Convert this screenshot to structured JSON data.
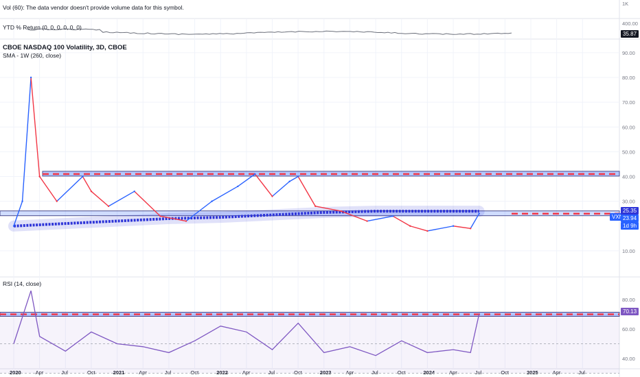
{
  "panes": {
    "volume": {
      "label": "Vol (60): The data vendor doesn't provide volume data for this symbol.",
      "scale": [
        "1K"
      ]
    },
    "ytd": {
      "label": "YTD % Return (0, 0, 0, 0, 0, 0)",
      "scale": [
        "400.00"
      ],
      "value_tag": "35.87"
    },
    "main": {
      "title": "CBOE NASDAQ 100 Volatility, 3D, CBOE",
      "sma_label": "SMA - 1W (260, close)",
      "scale": [
        "90.00",
        "80.00",
        "70.00",
        "60.00",
        "50.00",
        "40.00",
        "30.00",
        "10.00"
      ],
      "symbol_tag": "VXN",
      "tags": [
        "25.35",
        "23.94",
        "1d 9h"
      ]
    },
    "rsi": {
      "label": "RSI (14, close)",
      "scale": [
        "80.00",
        "60.00",
        "40.00"
      ],
      "value_tag": "70.13"
    }
  },
  "x_axis": {
    "labels": [
      "2020",
      "Apr",
      "Jul",
      "Oct",
      "2021",
      "Apr",
      "Jul",
      "Oct",
      "2022",
      "Apr",
      "Jul",
      "Oct",
      "2023",
      "Apr",
      "Jul",
      "Oct",
      "2024",
      "Apr",
      "Jul",
      "Oct",
      "2025",
      "Apr",
      "Jul"
    ],
    "bold": [
      "2020",
      "2021",
      "2022",
      "2023",
      "2024",
      "2025"
    ]
  },
  "colors": {
    "up": "#2962ff",
    "down": "#f23645",
    "sma": "#2e35d8",
    "rsi": "#7e57c2",
    "zone": "#2962ff",
    "dash": "#f23645"
  },
  "chart_data": [
    {
      "type": "line",
      "title": "CBOE NASDAQ 100 Volatility, 3D, CBOE",
      "series": [
        {
          "name": "SMA - 1W (260, close)",
          "x": [
            "2020-01",
            "2020-07",
            "2021-01",
            "2021-07",
            "2022-01",
            "2022-07",
            "2023-01",
            "2023-07",
            "2024-01",
            "2024-07"
          ],
          "values": [
            20,
            21,
            22,
            23,
            23.5,
            24.5,
            25.5,
            26,
            26,
            26
          ]
        },
        {
          "name": "VXN",
          "x": [
            "2020-01",
            "2020-02",
            "2020-03",
            "2020-04",
            "2020-06",
            "2020-09",
            "2020-10",
            "2020-12",
            "2021-03",
            "2021-06",
            "2021-09",
            "2021-12",
            "2022-03",
            "2022-05",
            "2022-07",
            "2022-09",
            "2022-10",
            "2022-12",
            "2023-03",
            "2023-06",
            "2023-09",
            "2023-11",
            "2024-01",
            "2024-04",
            "2024-06",
            "2024-07"
          ],
          "values": [
            20,
            30,
            80,
            40,
            30,
            40,
            34,
            28,
            34,
            24,
            22,
            30,
            36,
            41,
            32,
            38,
            40,
            28,
            26,
            22,
            24,
            20,
            18,
            20,
            19,
            25
          ]
        }
      ],
      "horizontal_levels": [
        41,
        25
      ],
      "ylim": [
        0,
        95
      ]
    },
    {
      "type": "line",
      "title": "RSI (14, close)",
      "series": [
        {
          "name": "RSI (14, close)",
          "x": [
            "2020-01",
            "2020-03",
            "2020-04",
            "2020-07",
            "2020-10",
            "2021-01",
            "2021-04",
            "2021-07",
            "2021-10",
            "2022-01",
            "2022-04",
            "2022-07",
            "2022-10",
            "2023-01",
            "2023-04",
            "2023-07",
            "2023-10",
            "2024-01",
            "2024-04",
            "2024-06",
            "2024-07"
          ],
          "values": [
            50,
            86,
            55,
            45,
            58,
            50,
            48,
            44,
            52,
            62,
            58,
            46,
            64,
            44,
            48,
            42,
            52,
            44,
            46,
            44,
            70.13
          ]
        }
      ],
      "horizontal_levels": [
        70,
        50,
        30
      ],
      "ylim": [
        28,
        92
      ]
    }
  ]
}
